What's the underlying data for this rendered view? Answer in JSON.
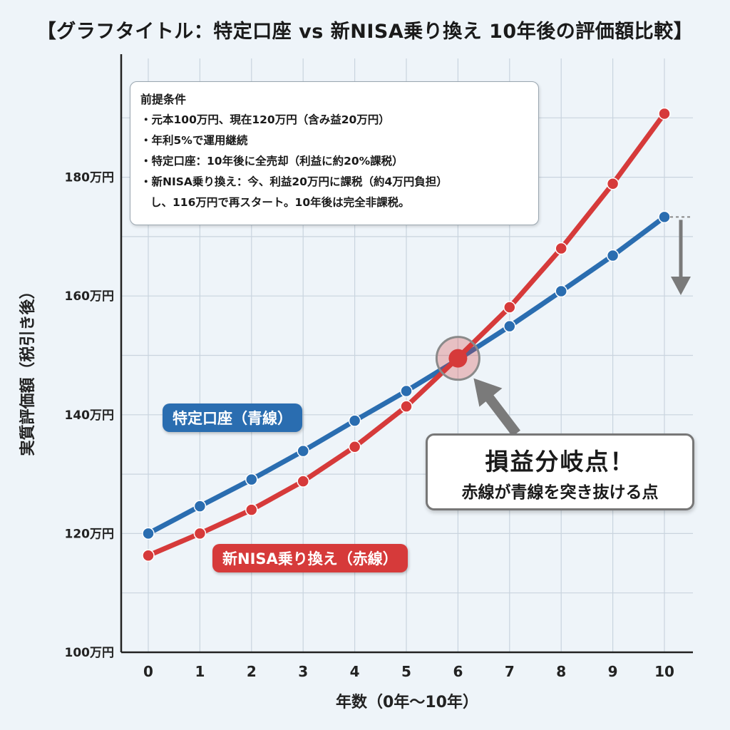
{
  "page_title": "【グラフタイトル：特定口座 vs 新NISA乗り換え 10年後の評価額比較】",
  "chart_data": {
    "type": "line",
    "title": "【グラフタイトル：特定口座 vs 新NISA乗り換え 10年後の評価額比較】",
    "xlabel": "年数（0年〜10年）",
    "ylabel": "実質評価額（税引き後）",
    "x": [
      0,
      1,
      2,
      3,
      4,
      5,
      6,
      7,
      8,
      9,
      10
    ],
    "x_tick_labels": [
      "0",
      "1",
      "2",
      "3",
      "4",
      "5",
      "6",
      "7",
      "8",
      "9",
      "10"
    ],
    "ylim": [
      100,
      200
    ],
    "y_ticks": [
      100,
      120,
      140,
      160,
      180
    ],
    "y_tick_labels": [
      "100万円",
      "120万円",
      "140万円",
      "160万円",
      "180万円"
    ],
    "grid": true,
    "series": [
      {
        "name": "特定口座（青線）",
        "color": "#2a6db0",
        "values": [
          120,
          124.6,
          129.1,
          133.9,
          139,
          144,
          149.3,
          154.9,
          160.8,
          166.8,
          173.3
        ]
      },
      {
        "name": "新NISA乗り換え（赤線）",
        "color": "#d63a3a",
        "values": [
          116.3,
          120,
          124,
          128.8,
          134.6,
          141.4,
          149.6,
          158.1,
          168,
          178.9,
          190.7
        ]
      }
    ],
    "annotations": {
      "breakeven": {
        "x": 6,
        "y": 149.5,
        "title": "損益分岐点！",
        "subtitle": "赤線が青線を突き抜ける点"
      }
    }
  },
  "premise": {
    "heading": "前提条件",
    "items": [
      "・元本100万円、現在120万円（含み益20万円）",
      "・年利5%で運用継続",
      "・特定口座：10年後に全売却（利益に約20%課税）",
      "・新NISA乗り換え：今、利益20万円に課税（約4万円負担）"
    ],
    "continuation": "し、116万円で再スタート。10年後は完全非課税。"
  },
  "colors": {
    "blue": "#2a6db0",
    "red": "#d63a3a",
    "background": "#eef4f9",
    "grid": "#c9d4de",
    "arrow": "#7a7a7a"
  }
}
